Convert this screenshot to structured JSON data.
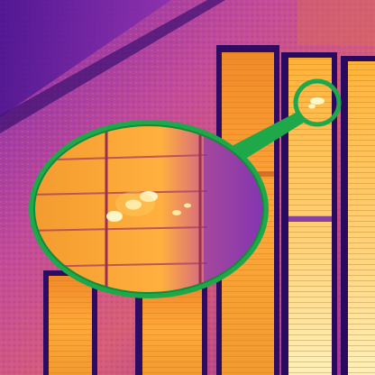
{
  "image": {
    "subject": "thermal-image-building-facade",
    "palette": {
      "cold": "#2a0a5e",
      "cool": "#6a1fb0",
      "mid": "#c04aa8",
      "warm": "#e8782a",
      "hot": "#ffb23a",
      "hotter": "#ffd86a",
      "hottest": "#fff6c8",
      "callout": "#1fa84a"
    },
    "icons": [
      "magnifier-callout-icon"
    ]
  }
}
